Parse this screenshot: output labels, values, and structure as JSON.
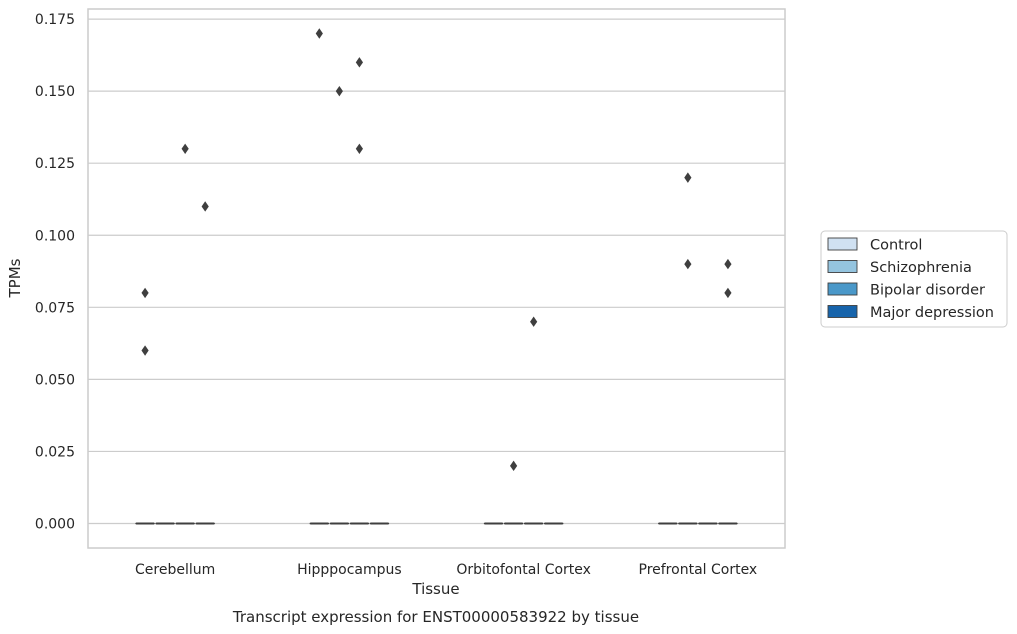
{
  "chart_data": {
    "type": "box",
    "title": "Transcript expression for ENST00000583922 by tissue",
    "xlabel": "Tissue",
    "ylabel": "TPMs",
    "ylim": [
      -0.0085,
      0.1785
    ],
    "yticks": [
      "0.000",
      "0.025",
      "0.050",
      "0.075",
      "0.100",
      "0.125",
      "0.150",
      "0.175"
    ],
    "ytick_values": [
      0,
      0.025,
      0.05,
      0.075,
      0.1,
      0.125,
      0.15,
      0.175
    ],
    "grid": true,
    "legend_position": "right",
    "categories": [
      "Cerebellum",
      "Hipppocampus",
      "Orbitofontal Cortex",
      "Prefrontal Cortex"
    ],
    "series": [
      {
        "name": "Control",
        "color": "#d0e1f2",
        "box": [
          [
            0,
            0,
            0,
            0,
            0
          ],
          [
            0,
            0,
            0,
            0,
            0
          ],
          [
            0,
            0,
            0,
            0,
            0
          ],
          [
            0,
            0,
            0,
            0,
            0
          ]
        ],
        "outliers": [
          [
            0.06,
            0.08
          ],
          [
            0.17
          ],
          [],
          []
        ]
      },
      {
        "name": "Schizophrenia",
        "color": "#94c4df",
        "box": [
          [
            0,
            0,
            0,
            0,
            0
          ],
          [
            0,
            0,
            0,
            0,
            0
          ],
          [
            0,
            0,
            0,
            0,
            0
          ],
          [
            0,
            0,
            0,
            0,
            0
          ]
        ],
        "outliers": [
          [],
          [
            0.15
          ],
          [
            0.02
          ],
          [
            0.09,
            0.12
          ]
        ]
      },
      {
        "name": "Bipolar disorder",
        "color": "#4a98c9",
        "box": [
          [
            0,
            0,
            0,
            0,
            0
          ],
          [
            0,
            0,
            0,
            0,
            0
          ],
          [
            0,
            0,
            0,
            0,
            0
          ],
          [
            0,
            0,
            0,
            0,
            0
          ]
        ],
        "outliers": [
          [
            0.13
          ],
          [
            0.13,
            0.16
          ],
          [
            0.07
          ],
          []
        ]
      },
      {
        "name": "Major depression",
        "color": "#1764ab",
        "box": [
          [
            0,
            0,
            0,
            0,
            0
          ],
          [
            0,
            0,
            0,
            0,
            0
          ],
          [
            0,
            0,
            0,
            0,
            0
          ],
          [
            0,
            0,
            0,
            0,
            0
          ]
        ],
        "outliers": [
          [
            0.11
          ],
          [],
          [],
          [
            0.08,
            0.09
          ]
        ]
      }
    ]
  }
}
